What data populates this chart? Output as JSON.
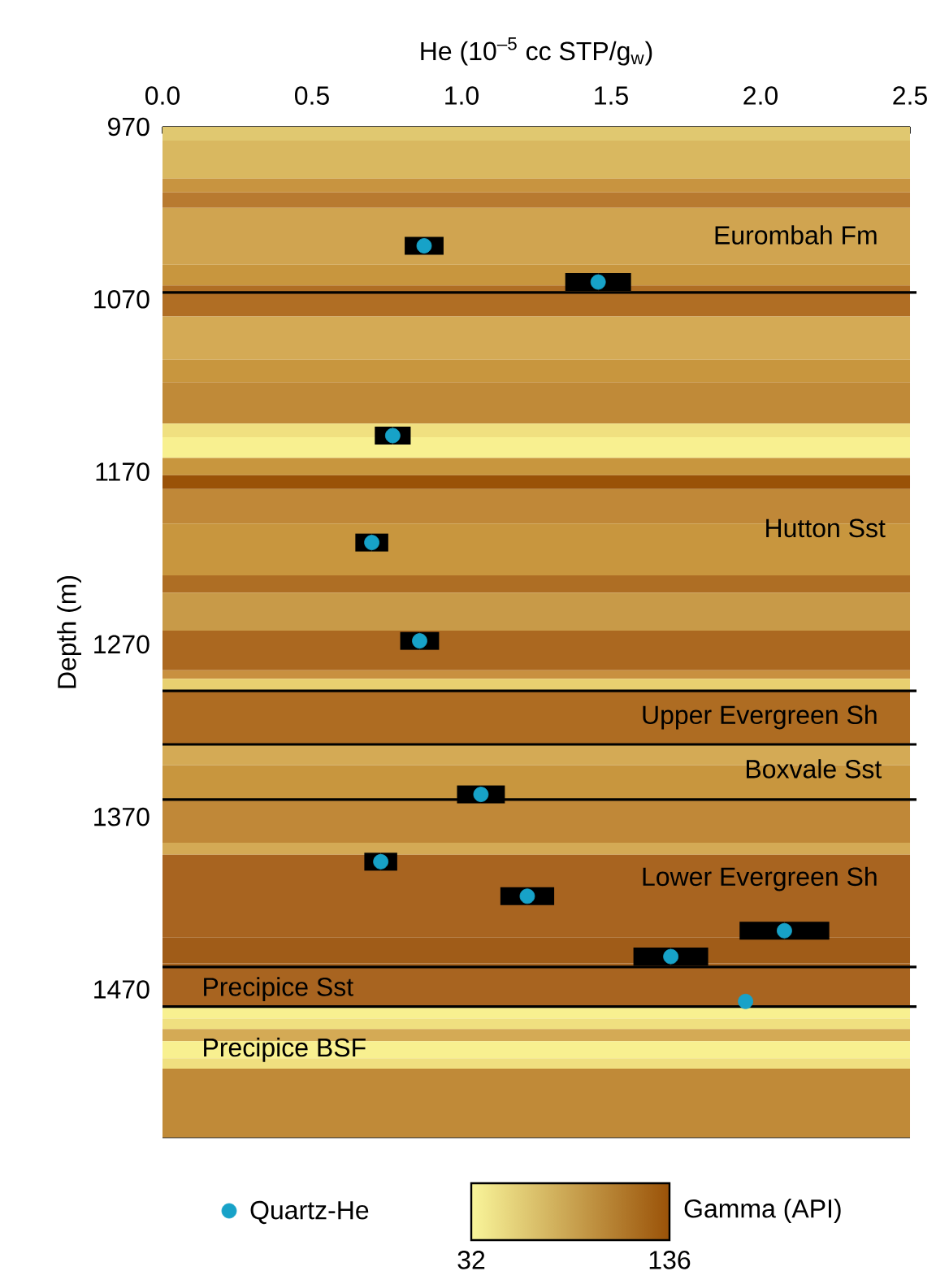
{
  "chart_data": {
    "type": "scatter",
    "xlabel": "He (10$^{–5}$ cc STP/g$_{w}$)",
    "ylabel": "Depth (m)",
    "xlim": [
      0,
      2.5
    ],
    "xticks": [
      {
        "value": 0,
        "label": "0.0"
      },
      0.5,
      {
        "value": 1,
        "label": "1.0"
      },
      1.5,
      {
        "value": 2,
        "label": "2.0"
      },
      2.5
    ],
    "ylim": [
      1556,
      970
    ],
    "yticks": [
      970,
      1070,
      1170,
      1270,
      1370,
      1470
    ],
    "series": [
      {
        "name": "Quartz-He",
        "color": "#17a2c8",
        "marker": "circle",
        "x": [
          0.875,
          1.457,
          0.77,
          0.7,
          0.86,
          1.065,
          0.73,
          1.22,
          2.08,
          1.7,
          1.95
        ],
        "values": [
          1039,
          1060,
          1149,
          1211,
          1268,
          1357,
          1396,
          1416,
          1436,
          1451,
          1477
        ],
        "xerrors": [
          0.065,
          0.11,
          0.06,
          0.055,
          0.065,
          0.08,
          0.055,
          0.09,
          0.15,
          0.125,
          null
        ]
      }
    ],
    "ref_lines": [
      {
        "axis": "y",
        "value": 1066,
        "color": "#000000"
      },
      {
        "axis": "y",
        "value": 1297,
        "color": "#000000"
      },
      {
        "axis": "y",
        "value": 1328,
        "color": "#000000"
      },
      {
        "axis": "y",
        "value": 1360,
        "color": "#000000"
      },
      {
        "axis": "y",
        "value": 1457,
        "color": "#000000"
      },
      {
        "axis": "y",
        "value": 1480,
        "color": "#000000"
      }
    ],
    "annotations": [
      "Eurombah Fm",
      "Hutton Sst",
      "Upper Evergreen Sh",
      "Boxvale Sst",
      "Lower Evergreen Sh",
      "Precipice Sst",
      "Precipice BSF"
    ],
    "bands": [
      {
        "axis": "y",
        "from": 970,
        "to": 978,
        "color": "#e0c870"
      },
      {
        "axis": "y",
        "from": 978,
        "to": 1000,
        "color": "#d9b860"
      },
      {
        "axis": "y",
        "from": 1000,
        "to": 1008,
        "color": "#c89440"
      },
      {
        "axis": "y",
        "from": 1008,
        "to": 1017,
        "color": "#b87a30"
      },
      {
        "axis": "y",
        "from": 1017,
        "to": 1050,
        "color": "#d0a450"
      },
      {
        "axis": "y",
        "from": 1050,
        "to": 1062,
        "color": "#c8963e"
      },
      {
        "axis": "y",
        "from": 1062,
        "to": 1080,
        "color": "#b06e24"
      },
      {
        "axis": "y",
        "from": 1080,
        "to": 1105,
        "color": "#d4aa55"
      },
      {
        "axis": "y",
        "from": 1105,
        "to": 1118,
        "color": "#c8963e"
      },
      {
        "axis": "y",
        "from": 1118,
        "to": 1142,
        "color": "#c08a38"
      },
      {
        "axis": "y",
        "from": 1142,
        "to": 1150,
        "color": "#f0e080"
      },
      {
        "axis": "y",
        "from": 1150,
        "to": 1162,
        "color": "#f8f090"
      },
      {
        "axis": "y",
        "from": 1162,
        "to": 1172,
        "color": "#c8963e"
      },
      {
        "axis": "y",
        "from": 1172,
        "to": 1180,
        "color": "#9a5208"
      },
      {
        "axis": "y",
        "from": 1180,
        "to": 1200,
        "color": "#c08838"
      },
      {
        "axis": "y",
        "from": 1200,
        "to": 1230,
        "color": "#c8963e"
      },
      {
        "axis": "y",
        "from": 1230,
        "to": 1240,
        "color": "#ae6e24"
      },
      {
        "axis": "y",
        "from": 1240,
        "to": 1262,
        "color": "#c89a48"
      },
      {
        "axis": "y",
        "from": 1262,
        "to": 1285,
        "color": "#ab6820"
      },
      {
        "axis": "y",
        "from": 1285,
        "to": 1290,
        "color": "#c89040"
      },
      {
        "axis": "y",
        "from": 1290,
        "to": 1297,
        "color": "#e8d070"
      },
      {
        "axis": "y",
        "from": 1297,
        "to": 1328,
        "color": "#ae6c22"
      },
      {
        "axis": "y",
        "from": 1328,
        "to": 1340,
        "color": "#d4aa55"
      },
      {
        "axis": "y",
        "from": 1340,
        "to": 1360,
        "color": "#c8963e"
      },
      {
        "axis": "y",
        "from": 1360,
        "to": 1385,
        "color": "#c08838"
      },
      {
        "axis": "y",
        "from": 1385,
        "to": 1392,
        "color": "#d4aa55"
      },
      {
        "axis": "y",
        "from": 1392,
        "to": 1440,
        "color": "#a86420"
      },
      {
        "axis": "y",
        "from": 1440,
        "to": 1455,
        "color": "#a05c18"
      },
      {
        "axis": "y",
        "from": 1455,
        "to": 1480,
        "color": "#a86420"
      },
      {
        "axis": "y",
        "from": 1480,
        "to": 1487,
        "color": "#f8f090"
      },
      {
        "axis": "y",
        "from": 1487,
        "to": 1493,
        "color": "#f0e080"
      },
      {
        "axis": "y",
        "from": 1493,
        "to": 1500,
        "color": "#d4aa55"
      },
      {
        "axis": "y",
        "from": 1500,
        "to": 1510,
        "color": "#f8f090"
      },
      {
        "axis": "y",
        "from": 1510,
        "to": 1516,
        "color": "#f0e080"
      },
      {
        "axis": "y",
        "from": 1516,
        "to": 1556,
        "color": "#c08a38"
      }
    ],
    "legend": "bottom",
    "clabel": "Gamma (API)",
    "clim": [
      32,
      136
    ],
    "cticks": [
      32,
      136
    ]
  }
}
